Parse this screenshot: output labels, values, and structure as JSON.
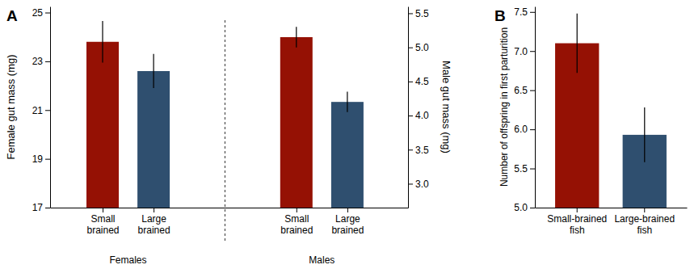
{
  "chart_data": [
    {
      "type": "bar",
      "title": "A",
      "ylabel": "Female gut mass (mg)",
      "y2label": "Male gut mass (mg)",
      "categories": [
        "Small brained",
        "Large brained",
        "Small brained",
        "Large brained"
      ],
      "series": [
        {
          "name": "Females",
          "axis": "y",
          "values": [
            23.8,
            22.6,
            null,
            null
          ],
          "errors": [
            0.85,
            0.7,
            null,
            null
          ],
          "colors": [
            "#951104",
            "#2f4f6f",
            "#951104",
            "#2f4f6f"
          ]
        },
        {
          "name": "Males",
          "axis": "y2",
          "values": [
            null,
            null,
            5.15,
            4.2
          ],
          "errors": [
            null,
            null,
            0.15,
            0.15
          ],
          "colors": [
            "#951104",
            "#2f4f6f",
            "#951104",
            "#2f4f6f"
          ]
        }
      ],
      "ylim": [
        17,
        25.25
      ],
      "yticks": [
        17,
        19,
        21,
        23,
        25
      ],
      "y2lim": [
        2.65,
        5.6
      ],
      "y2ticks": [
        {
          "value": 3,
          "label": "3.0"
        },
        3.5,
        {
          "value": 4,
          "label": "4.0"
        },
        4.5,
        {
          "value": 5,
          "label": "5.0"
        },
        5.5
      ],
      "grid": false
    },
    {
      "type": "bar",
      "title": "B",
      "ylabel": "Number of offspring in first parturition",
      "categories": [
        "Small-brained fish",
        "Large-brained fish"
      ],
      "values": [
        7.1,
        5.93
      ],
      "errors": [
        0.38,
        0.35
      ],
      "colors": [
        "#951104",
        "#2f4f6f"
      ],
      "ylim": [
        5,
        7.57
      ],
      "yticks": [
        {
          "value": 5,
          "label": "5.0"
        },
        5.5,
        {
          "value": 6,
          "label": "6.0"
        },
        6.5,
        {
          "value": 7,
          "label": "7.0"
        },
        7.5
      ],
      "grid": false
    }
  ]
}
